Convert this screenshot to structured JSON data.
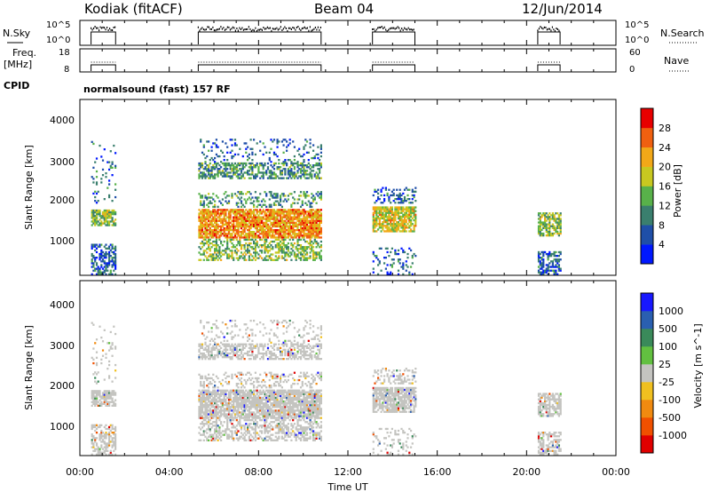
{
  "header": {
    "station": "Kodiak (fitACF)",
    "beam": "Beam 04",
    "date": "12/Jun/2014"
  },
  "top_panels": {
    "nsky_label": "N.Sky",
    "nsky_ticks": [
      "10^5",
      "10^0"
    ],
    "nsearch_label": "N.Search",
    "nsearch_ticks": [
      "10^5",
      "10^0"
    ],
    "freq_label": "Freq.",
    "freq_unit": "[MHz]",
    "freq_ticks": [
      "18",
      "8"
    ],
    "nave_label": "Nave",
    "nave_ticks": [
      "60",
      "0"
    ],
    "cpid_label": "CPID",
    "cpid_text": "normalsound (fast) 157 RF"
  },
  "chart_data": [
    {
      "type": "heatmap",
      "name": "power",
      "ylabel": "Slant Range [km]",
      "yticks": [
        "1000",
        "2000",
        "3000",
        "4000"
      ],
      "ylim": [
        200,
        4500
      ],
      "xlim_hours": [
        0,
        24
      ],
      "colorbar_label": "Power [dB]",
      "colorbar_ticks": [
        "4",
        "8",
        "12",
        "16",
        "20",
        "24",
        "28"
      ],
      "colors": [
        "#0018ff",
        "#1f4fa8",
        "#3a7f6e",
        "#58b14a",
        "#c8c820",
        "#f2a818",
        "#f06010",
        "#e80000"
      ],
      "data_intervals_hours": [
        [
          0.5,
          1.6
        ],
        [
          5.3,
          10.8
        ],
        [
          13.1,
          15.0
        ],
        [
          20.5,
          21.5
        ]
      ]
    },
    {
      "type": "heatmap",
      "name": "velocity",
      "ylabel": "Slant Range [km]",
      "yticks": [
        "1000",
        "2000",
        "3000",
        "4000"
      ],
      "ylim": [
        200,
        4500
      ],
      "xlim_hours": [
        0,
        24
      ],
      "colorbar_label": "Velocity [m s^-1]",
      "colorbar_ticks": [
        "1000",
        "500",
        "100",
        "25",
        "-25",
        "-100",
        "-500",
        "-1000"
      ],
      "colors": [
        "#1818ff",
        "#2a5fb0",
        "#3a8a5a",
        "#62c040",
        "#c4c4c0",
        "#f0c020",
        "#f08a10",
        "#f05000",
        "#e00000"
      ],
      "ground_scatter_color": "#c4c4c0"
    }
  ],
  "time_axis": {
    "label": "Time UT",
    "ticks": [
      "00:00",
      "04:00",
      "08:00",
      "12:00",
      "16:00",
      "20:00",
      "00:00"
    ]
  }
}
